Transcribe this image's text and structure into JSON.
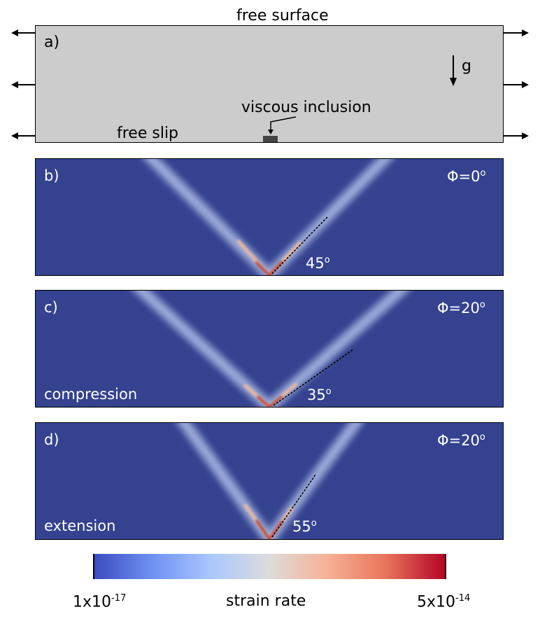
{
  "panel_a": {
    "label": "a)",
    "top_label": "free surface",
    "bottom_label": "free slip",
    "inclusion_label": "viscous inclusion",
    "gravity_label": "g",
    "fill_color": "#cccccc"
  },
  "panel_b": {
    "label": "b)",
    "phi": "Φ=0",
    "angle": "45",
    "mode": ""
  },
  "panel_c": {
    "label": "c)",
    "phi": "Φ=20",
    "angle": "35",
    "mode": "compression"
  },
  "panel_d": {
    "label": "d)",
    "phi": "Φ=20",
    "angle": "55",
    "mode": "extension"
  },
  "degree_symbol": "o",
  "colorbar": {
    "label": "strain rate",
    "min_base": "1x10",
    "min_exp": "-17",
    "max_base": "5x10",
    "max_exp": "-14",
    "colors": [
      "#3b4cc0",
      "#6f92f3",
      "#aac7fd",
      "#dddcdc",
      "#f7b194",
      "#e7745b",
      "#b40426"
    ]
  },
  "background_color": "#34428f"
}
